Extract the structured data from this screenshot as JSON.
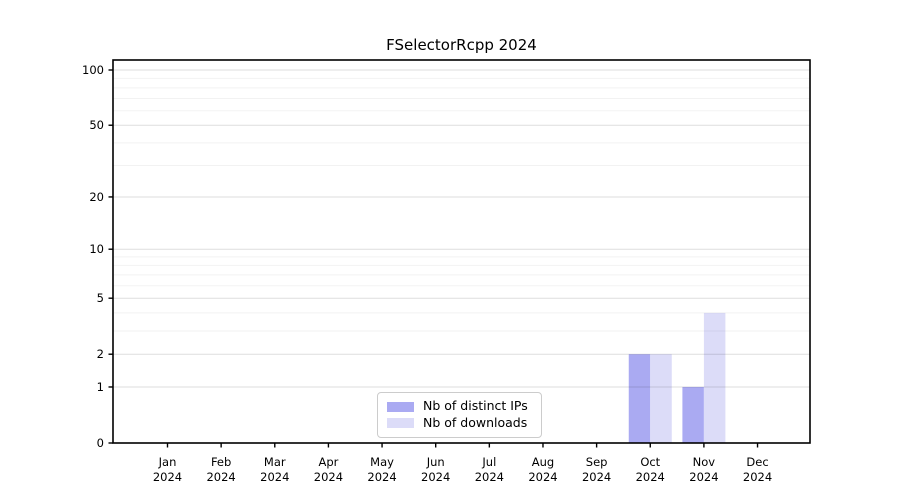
{
  "chart_data": {
    "type": "bar",
    "title": "FSelectorRcpp 2024",
    "x_categories": [
      "Jan",
      "Feb",
      "Mar",
      "Apr",
      "May",
      "Jun",
      "Jul",
      "Aug",
      "Sep",
      "Oct",
      "Nov",
      "Dec"
    ],
    "x_year": "2024",
    "series": [
      {
        "name": "Nb of distinct IPs",
        "color": "#aaaaf2",
        "values": [
          0,
          0,
          0,
          0,
          0,
          0,
          0,
          0,
          0,
          2,
          1,
          0
        ]
      },
      {
        "name": "Nb of downloads",
        "color": "#dcdcf8",
        "values": [
          0,
          0,
          0,
          0,
          0,
          0,
          0,
          0,
          0,
          2,
          4,
          0
        ]
      }
    ],
    "y_scale": "log1p",
    "y_ticks": [
      0,
      1,
      2,
      5,
      10,
      20,
      50,
      100
    ],
    "y_minor_gridlines": [
      3,
      4,
      6,
      7,
      8,
      9,
      30,
      40,
      60,
      70,
      80,
      90
    ],
    "ylim": [
      0,
      113
    ],
    "grid": true,
    "legend_position": "bottom-center"
  }
}
